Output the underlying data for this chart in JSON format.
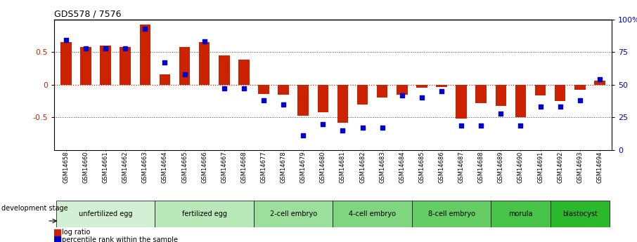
{
  "title": "GDS578 / 7576",
  "samples": [
    "GSM14658",
    "GSM14660",
    "GSM14661",
    "GSM14662",
    "GSM14663",
    "GSM14664",
    "GSM14665",
    "GSM14666",
    "GSM14667",
    "GSM14668",
    "GSM14677",
    "GSM14678",
    "GSM14679",
    "GSM14680",
    "GSM14681",
    "GSM14682",
    "GSM14683",
    "GSM14684",
    "GSM14685",
    "GSM14686",
    "GSM14687",
    "GSM14688",
    "GSM14689",
    "GSM14690",
    "GSM14691",
    "GSM14692",
    "GSM14693",
    "GSM14694"
  ],
  "log_ratio": [
    0.65,
    0.58,
    0.6,
    0.58,
    0.92,
    0.16,
    0.58,
    0.65,
    0.45,
    0.38,
    -0.14,
    -0.15,
    -0.48,
    -0.42,
    -0.58,
    -0.3,
    -0.2,
    -0.15,
    -0.05,
    -0.03,
    -0.52,
    -0.28,
    -0.33,
    -0.5,
    -0.16,
    -0.25,
    -0.08,
    0.06
  ],
  "percentile": [
    84,
    78,
    78,
    78,
    93,
    67,
    58,
    83,
    47,
    47,
    38,
    35,
    11,
    20,
    15,
    17,
    17,
    42,
    40,
    45,
    19,
    19,
    28,
    19,
    33,
    33,
    38,
    54
  ],
  "bar_color": "#cc2200",
  "dot_color": "#0000cc",
  "ylim": [
    -1.0,
    1.0
  ],
  "y2lim": [
    0,
    100
  ],
  "yticks_left": [
    -0.5,
    0.0,
    0.5
  ],
  "ytick_labels_left": [
    "-0.5",
    "0",
    "0.5"
  ],
  "y2ticks": [
    0,
    25,
    50,
    75,
    100
  ],
  "y2tick_labels": [
    "0",
    "25",
    "50",
    "75",
    "100%"
  ],
  "stages": [
    {
      "label": "unfertilized egg",
      "start": 0,
      "end": 5
    },
    {
      "label": "fertilized egg",
      "start": 5,
      "end": 10
    },
    {
      "label": "2-cell embryo",
      "start": 10,
      "end": 14
    },
    {
      "label": "4-cell embryo",
      "start": 14,
      "end": 18
    },
    {
      "label": "8-cell embryo",
      "start": 18,
      "end": 22
    },
    {
      "label": "morula",
      "start": 22,
      "end": 25
    },
    {
      "label": "blastocyst",
      "start": 25,
      "end": 28
    }
  ],
  "stage_colors": [
    "#d4f0d4",
    "#b8e8b8",
    "#9cdf9c",
    "#80d680",
    "#64cd64",
    "#48c448",
    "#2cb82c"
  ],
  "bg_color": "#ffffff",
  "hline_zero_color": "#cc2200",
  "hline_grid_color": "#444444"
}
